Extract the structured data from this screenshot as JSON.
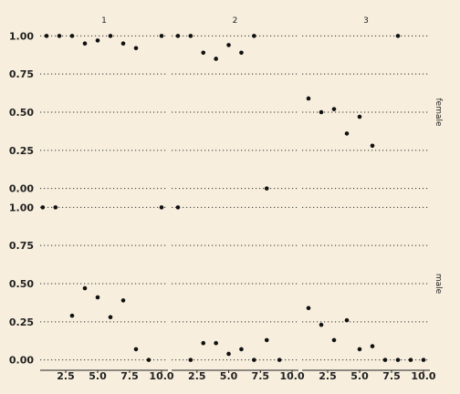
{
  "chart_data": {
    "type": "scatter",
    "background": "#f7eedd",
    "point_color": "#111111",
    "grid": "dotted horizontal major lines",
    "col_labels": [
      "1",
      "2",
      "3"
    ],
    "row_labels": [
      "female",
      "male"
    ],
    "x_ticks": [
      "2.5",
      "5.0",
      "7.5",
      "10.0"
    ],
    "x_tick_values": [
      2.5,
      5.0,
      7.5,
      10.0
    ],
    "xlim": [
      0.5,
      10.5
    ],
    "y_ticks": [
      "0.00",
      "0.25",
      "0.50",
      "0.75",
      "1.00"
    ],
    "y_tick_values": [
      0,
      0.25,
      0.5,
      0.75,
      1.0
    ],
    "ylim": [
      -0.05,
      1.05
    ],
    "panels": [
      {
        "row": "female",
        "col": "1",
        "points": [
          [
            1,
            1.0
          ],
          [
            2,
            1.0
          ],
          [
            3,
            1.0
          ],
          [
            4,
            0.95
          ],
          [
            5,
            0.97
          ],
          [
            6,
            1.0
          ],
          [
            7,
            0.95
          ],
          [
            8,
            0.92
          ],
          [
            10,
            1.0
          ]
        ]
      },
      {
        "row": "female",
        "col": "2",
        "points": [
          [
            1,
            1.0
          ],
          [
            2,
            1.0
          ],
          [
            3,
            0.89
          ],
          [
            4,
            0.85
          ],
          [
            5,
            0.94
          ],
          [
            6,
            0.89
          ],
          [
            7,
            1.0
          ],
          [
            8,
            0.0
          ]
        ]
      },
      {
        "row": "female",
        "col": "3",
        "points": [
          [
            1,
            0.59
          ],
          [
            2,
            0.5
          ],
          [
            3,
            0.52
          ],
          [
            4,
            0.36
          ],
          [
            5,
            0.47
          ],
          [
            6,
            0.28
          ],
          [
            8,
            1.0
          ]
        ]
      },
      {
        "row": "male",
        "col": "1",
        "points": [
          [
            0.7,
            1.0
          ],
          [
            1.7,
            1.0
          ],
          [
            3,
            0.29
          ],
          [
            4,
            0.47
          ],
          [
            5,
            0.41
          ],
          [
            6,
            0.28
          ],
          [
            7,
            0.39
          ],
          [
            8,
            0.07
          ],
          [
            9,
            0.0
          ],
          [
            10,
            1.0
          ]
        ]
      },
      {
        "row": "male",
        "col": "2",
        "points": [
          [
            1,
            1.0
          ],
          [
            2,
            0.0
          ],
          [
            3,
            0.11
          ],
          [
            4,
            0.11
          ],
          [
            5,
            0.04
          ],
          [
            6,
            0.07
          ],
          [
            7,
            0.0
          ],
          [
            8,
            0.13
          ],
          [
            9,
            0.0
          ]
        ]
      },
      {
        "row": "male",
        "col": "3",
        "points": [
          [
            1,
            0.34
          ],
          [
            2,
            0.23
          ],
          [
            3,
            0.13
          ],
          [
            4,
            0.26
          ],
          [
            5,
            0.07
          ],
          [
            6,
            0.09
          ],
          [
            7,
            0.0
          ],
          [
            8,
            0.0
          ],
          [
            9,
            0.0
          ],
          [
            10,
            0.0
          ]
        ]
      }
    ]
  }
}
